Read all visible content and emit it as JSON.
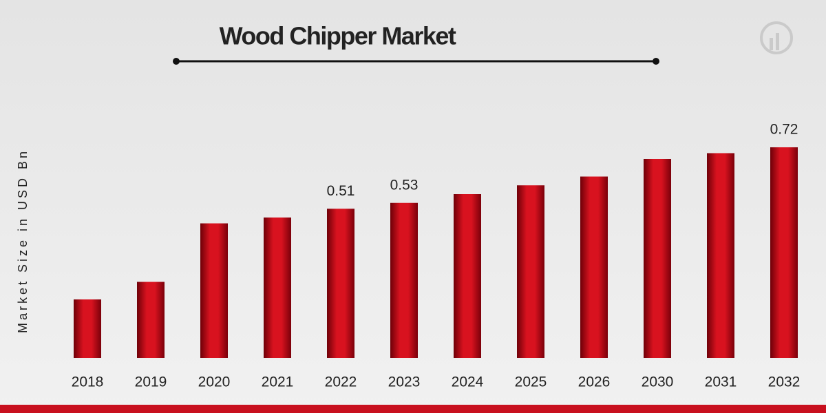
{
  "chart_data": {
    "type": "bar",
    "title": "Wood Chipper Market",
    "y_label": "Market Size in USD Bn",
    "categories": [
      "2018",
      "2019",
      "2020",
      "2021",
      "2022",
      "2023",
      "2024",
      "2025",
      "2026",
      "2030",
      "2031",
      "2032"
    ],
    "values": [
      0.2,
      0.26,
      0.46,
      0.48,
      0.51,
      0.53,
      0.56,
      0.59,
      0.62,
      0.68,
      0.7,
      0.72
    ],
    "value_labels": [
      null,
      null,
      null,
      null,
      "0.51",
      "0.53",
      null,
      null,
      null,
      null,
      null,
      "0.72"
    ],
    "color": "#c8101e",
    "ylim": [
      0,
      0.8
    ]
  }
}
